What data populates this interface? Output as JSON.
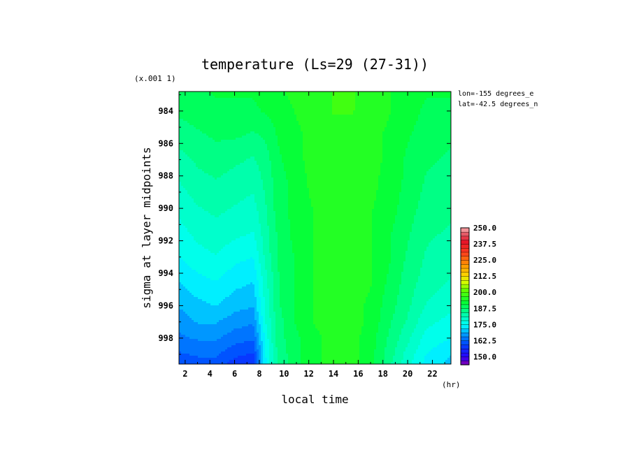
{
  "chart_data": {
    "type": "heatmap",
    "title": "temperature (Ls=29 (27-31))",
    "xlabel": "local time",
    "x_unit": "(hr)",
    "ylabel": "sigma at layer midpoints",
    "y_unit": "(x.001 1)",
    "annotations": [
      "lon=-155 degrees_e",
      "lat=-42.5 degrees_n"
    ],
    "xlim": [
      1.5,
      23.5
    ],
    "ylim": [
      999.6,
      982.8
    ],
    "x_ticks": [
      2,
      4,
      6,
      8,
      10,
      12,
      14,
      16,
      18,
      20,
      22
    ],
    "y_ticks": [
      984,
      986,
      988,
      990,
      992,
      994,
      996,
      998
    ],
    "x": [
      1.5,
      3,
      4.5,
      6,
      7.5,
      8.5,
      9.5,
      11,
      12.5,
      14,
      15.5,
      17,
      18.5,
      20,
      21.5,
      23.5
    ],
    "y": [
      982.8,
      984,
      985.5,
      987,
      988.5,
      990,
      991.5,
      993,
      994.5,
      996,
      997,
      998,
      999,
      999.6
    ],
    "z": [
      [
        189,
        190,
        191,
        191,
        191,
        192,
        193,
        195,
        196,
        197,
        197,
        196,
        194,
        192,
        191,
        191
      ],
      [
        188,
        189,
        190,
        190,
        190,
        191,
        192,
        194,
        196,
        197,
        197,
        196,
        194,
        192,
        190,
        190
      ],
      [
        186,
        187,
        188,
        188,
        187,
        188,
        191,
        193,
        195,
        196,
        196,
        195,
        193,
        191,
        189,
        188
      ],
      [
        183,
        185,
        186,
        185,
        184,
        186,
        190,
        193,
        195,
        196,
        196,
        195,
        193,
        190,
        188,
        187
      ],
      [
        181,
        183,
        184,
        183,
        182,
        185,
        189,
        192,
        195,
        196,
        196,
        195,
        192,
        190,
        187,
        186
      ],
      [
        179,
        181,
        182,
        181,
        180,
        184,
        189,
        192,
        194,
        196,
        196,
        194,
        192,
        189,
        186,
        185
      ],
      [
        177,
        179,
        180,
        179,
        178,
        183,
        188,
        192,
        194,
        196,
        196,
        194,
        191,
        188,
        185,
        184
      ],
      [
        175,
        177,
        178,
        176,
        175,
        182,
        188,
        191,
        194,
        196,
        196,
        194,
        191,
        187,
        184,
        182
      ],
      [
        172,
        174,
        175,
        173,
        172,
        180,
        187,
        191,
        194,
        196,
        196,
        194,
        190,
        186,
        183,
        181
      ],
      [
        169,
        171,
        172,
        170,
        169,
        179,
        187,
        191,
        194,
        195,
        195,
        193,
        189,
        185,
        181,
        179
      ],
      [
        167,
        169,
        169,
        167,
        166,
        178,
        186,
        191,
        194,
        195,
        195,
        193,
        188,
        184,
        179,
        177
      ],
      [
        165,
        166,
        166,
        164,
        163,
        176,
        186,
        190,
        193,
        195,
        195,
        192,
        187,
        182,
        177,
        175
      ],
      [
        162,
        163,
        163,
        160,
        159,
        175,
        185,
        190,
        193,
        195,
        195,
        192,
        186,
        180,
        175,
        172
      ],
      [
        160,
        161,
        161,
        158,
        157,
        174,
        185,
        190,
        193,
        195,
        195,
        192,
        185,
        179,
        174,
        171
      ]
    ],
    "colorbar": {
      "min": 143.75,
      "max": 250,
      "step": 3.125,
      "labels": [
        "250.0",
        "237.5",
        "225.0",
        "212.5",
        "200.0",
        "187.5",
        "175.0",
        "162.5",
        "150.0"
      ]
    }
  }
}
